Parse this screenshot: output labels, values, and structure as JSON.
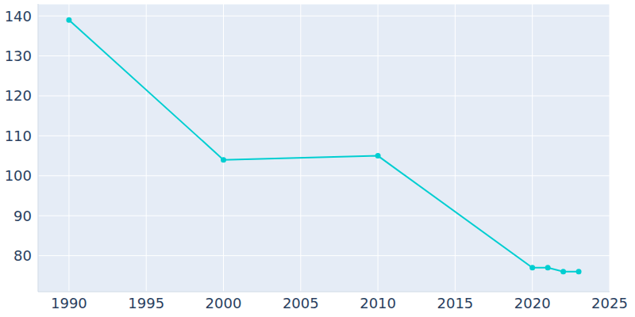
{
  "chart_data": {
    "type": "line",
    "x": [
      1990,
      2000,
      2010,
      2020,
      2021,
      2022,
      2023
    ],
    "values": [
      139,
      104,
      105,
      77,
      77,
      76,
      76
    ],
    "color": "#00ced1",
    "marker": "circle",
    "xlim": [
      1988,
      2025
    ],
    "xticks": [
      1990,
      1995,
      2000,
      2005,
      2010,
      2015,
      2020,
      2025
    ],
    "ylim": [
      71,
      143
    ],
    "yticks": [
      80,
      90,
      100,
      110,
      120,
      130,
      140
    ],
    "grid": true
  }
}
